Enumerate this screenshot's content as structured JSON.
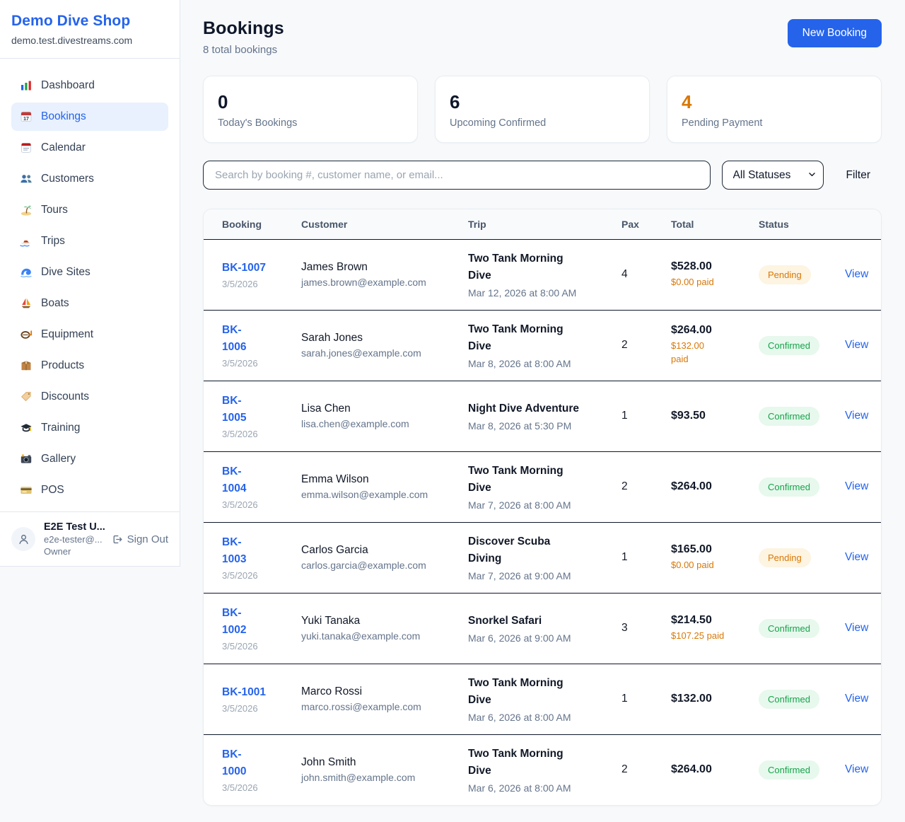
{
  "colors": {
    "accent_blue": "#2563eb",
    "pending_text": "#d97706",
    "pending_bg": "#fdf4e1",
    "confirmed_text": "#16a34a",
    "confirmed_bg": "#e7f8ed",
    "paid_orange": "#d97706"
  },
  "sidebar": {
    "brand": "Demo Dive Shop",
    "domain": "demo.test.divestreams.com",
    "items": [
      {
        "label": "Dashboard",
        "icon": "bar-chart",
        "active": false
      },
      {
        "label": "Bookings",
        "icon": "calendar-date",
        "active": true
      },
      {
        "label": "Calendar",
        "icon": "calendar",
        "active": false
      },
      {
        "label": "Customers",
        "icon": "users",
        "active": false
      },
      {
        "label": "Tours",
        "icon": "island",
        "active": false
      },
      {
        "label": "Trips",
        "icon": "speedboat",
        "active": false
      },
      {
        "label": "Dive Sites",
        "icon": "wave",
        "active": false
      },
      {
        "label": "Boats",
        "icon": "sailboat",
        "active": false
      },
      {
        "label": "Equipment",
        "icon": "snorkel-mask",
        "active": false
      },
      {
        "label": "Products",
        "icon": "package",
        "active": false
      },
      {
        "label": "Discounts",
        "icon": "tag",
        "active": false
      },
      {
        "label": "Training",
        "icon": "grad-cap",
        "active": false
      },
      {
        "label": "Gallery",
        "icon": "camera",
        "active": false
      },
      {
        "label": "POS",
        "icon": "credit-card",
        "active": false
      }
    ],
    "user": {
      "name": "E2E Test U...",
      "email": "e2e-tester@...",
      "role": "Owner",
      "sign_out_label": "Sign Out"
    }
  },
  "header": {
    "title": "Bookings",
    "subtitle": "8 total bookings",
    "new_booking_label": "New Booking"
  },
  "stats": [
    {
      "value": "0",
      "label": "Today's Bookings"
    },
    {
      "value": "6",
      "label": "Upcoming Confirmed"
    },
    {
      "value": "4",
      "label": "Pending Payment"
    }
  ],
  "filters": {
    "search_placeholder": "Search by booking #, customer name, or email...",
    "status_select_value": "All Statuses",
    "filter_label": "Filter"
  },
  "table": {
    "columns": [
      "Booking",
      "Customer",
      "Trip",
      "Pax",
      "Total",
      "Status"
    ],
    "view_label": "View",
    "rows": [
      {
        "id": "BK-1007",
        "date": "3/5/2026",
        "customer": "James Brown",
        "email": "james.brown@example.com",
        "trip": "Two Tank Morning\nDive",
        "trip_date": "Mar 12, 2026 at 8:00 AM",
        "pax": "4",
        "total": "$528.00",
        "paid": "$0.00 paid",
        "status": "Pending"
      },
      {
        "id": "BK-\n1006",
        "date": "3/5/2026",
        "customer": "Sarah Jones",
        "email": "sarah.jones@example.com",
        "trip": "Two Tank Morning\nDive",
        "trip_date": "Mar 8, 2026 at 8:00 AM",
        "pax": "2",
        "total": "$264.00",
        "paid": "$132.00\npaid",
        "status": "Confirmed"
      },
      {
        "id": "BK-\n1005",
        "date": "3/5/2026",
        "customer": "Lisa Chen",
        "email": "lisa.chen@example.com",
        "trip": "Night Dive Adventure",
        "trip_date": "Mar 8, 2026 at 5:30 PM",
        "pax": "1",
        "total": "$93.50",
        "paid": "",
        "status": "Confirmed"
      },
      {
        "id": "BK-\n1004",
        "date": "3/5/2026",
        "customer": "Emma Wilson",
        "email": "emma.wilson@example.com",
        "trip": "Two Tank Morning\nDive",
        "trip_date": "Mar 7, 2026 at 8:00 AM",
        "pax": "2",
        "total": "$264.00",
        "paid": "",
        "status": "Confirmed"
      },
      {
        "id": "BK-\n1003",
        "date": "3/5/2026",
        "customer": "Carlos Garcia",
        "email": "carlos.garcia@example.com",
        "trip": "Discover Scuba\nDiving",
        "trip_date": "Mar 7, 2026 at 9:00 AM",
        "pax": "1",
        "total": "$165.00",
        "paid": "$0.00 paid",
        "status": "Pending"
      },
      {
        "id": "BK-\n1002",
        "date": "3/5/2026",
        "customer": "Yuki Tanaka",
        "email": "yuki.tanaka@example.com",
        "trip": "Snorkel Safari",
        "trip_date": "Mar 6, 2026 at 9:00 AM",
        "pax": "3",
        "total": "$214.50",
        "paid": "$107.25 paid",
        "status": "Confirmed"
      },
      {
        "id": "BK-1001",
        "date": "3/5/2026",
        "customer": "Marco Rossi",
        "email": "marco.rossi@example.com",
        "trip": "Two Tank Morning\nDive",
        "trip_date": "Mar 6, 2026 at 8:00 AM",
        "pax": "1",
        "total": "$132.00",
        "paid": "",
        "status": "Confirmed"
      },
      {
        "id": "BK-\n1000",
        "date": "3/5/2026",
        "customer": "John Smith",
        "email": "john.smith@example.com",
        "trip": "Two Tank Morning\nDive",
        "trip_date": "Mar 6, 2026 at 8:00 AM",
        "pax": "2",
        "total": "$264.00",
        "paid": "",
        "status": "Confirmed"
      }
    ]
  }
}
